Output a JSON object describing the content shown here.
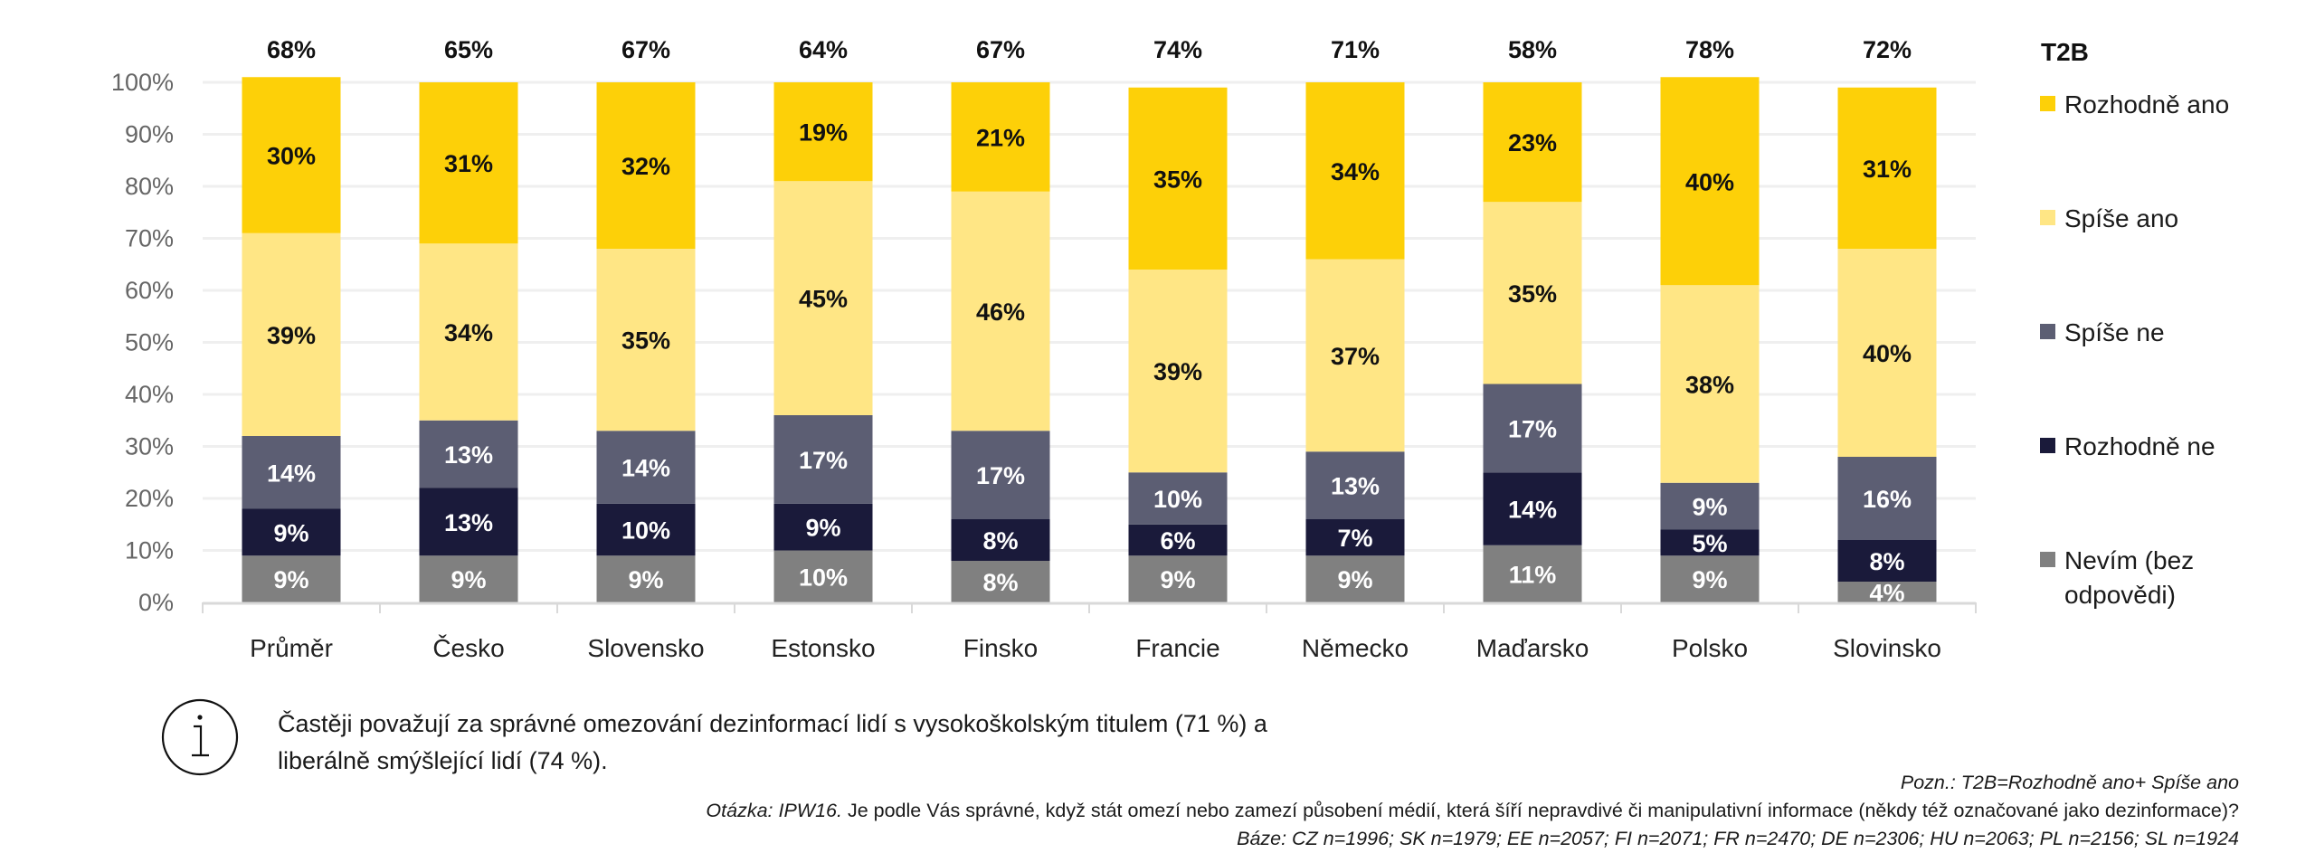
{
  "chart_data": {
    "type": "bar",
    "stacked": true,
    "title": "",
    "xlabel": "",
    "ylabel": "",
    "ylim": [
      0,
      100
    ],
    "y_ticks": [
      "0%",
      "10%",
      "20%",
      "30%",
      "40%",
      "50%",
      "60%",
      "70%",
      "80%",
      "90%",
      "100%"
    ],
    "grid": true,
    "legend_position": "right",
    "legend_title": "T2B",
    "categories": [
      "Průměr",
      "Česko",
      "Slovensko",
      "Estonsko",
      "Finsko",
      "Francie",
      "Německo",
      "Maďarsko",
      "Polsko",
      "Slovinsko"
    ],
    "totals_label": "T2B",
    "totals": [
      "68%",
      "65%",
      "67%",
      "64%",
      "67%",
      "74%",
      "71%",
      "58%",
      "78%",
      "72%"
    ],
    "series": [
      {
        "name": "Nevím (bez odpovědi)",
        "legend_lines": [
          "Nevím (bez",
          "odpovědi)"
        ],
        "color": "#808080",
        "label_color": "#ffffff",
        "values": [
          9,
          9,
          9,
          10,
          8,
          9,
          9,
          11,
          9,
          4
        ]
      },
      {
        "name": "Rozhodně ne",
        "legend_lines": [
          "Rozhodně ne"
        ],
        "color": "#1a1a3a",
        "label_color": "#ffffff",
        "values": [
          9,
          13,
          10,
          9,
          8,
          6,
          7,
          14,
          5,
          8
        ]
      },
      {
        "name": "Spíše ne",
        "legend_lines": [
          "Spíše ne"
        ],
        "color": "#5c5e73",
        "label_color": "#ffffff",
        "values": [
          14,
          13,
          14,
          17,
          17,
          10,
          13,
          17,
          9,
          16
        ]
      },
      {
        "name": "Spíše ano",
        "legend_lines": [
          "Spíše ano"
        ],
        "color": "#ffe685",
        "label_color": "#111111",
        "values": [
          39,
          34,
          35,
          45,
          46,
          39,
          37,
          35,
          38,
          40
        ]
      },
      {
        "name": "Rozhodně ano",
        "legend_lines": [
          "Rozhodně ano"
        ],
        "color": "#fdd008",
        "label_color": "#111111",
        "values": [
          30,
          31,
          32,
          19,
          21,
          35,
          34,
          23,
          40,
          31
        ]
      }
    ]
  },
  "info": {
    "icon": "info-icon",
    "line1": "Častěji považují za správné omezování dezinformací lidí s vysokoškolským titulem (71 %) a",
    "line2": "liberálně smýšlející lidí (74 %)."
  },
  "notes": {
    "note": "Pozn.: T2B=Rozhodně ano+ Spíše ano",
    "question_prefix": "Otázka: IPW16.",
    "question": " Je podle Vás správné, když stát omezí nebo zamezí působení médií, která šíří nepravdivé či manipulativní informace (někdy též označované jako dezinformace)?",
    "base": "Báze: CZ n=1996; SK n=1979; EE n=2057; FI n=2071; FR n=2470; DE n=2306; HU n=2063; PL n=2156; SL n=1924"
  }
}
